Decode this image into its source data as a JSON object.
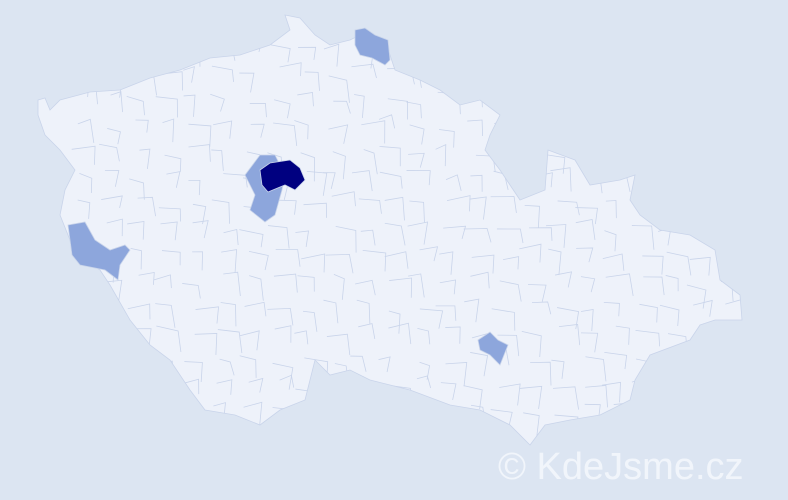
{
  "map": {
    "colors": {
      "background": "#dce5f2",
      "district_default": "#eef2fa",
      "district_border": "#c9d4ea",
      "level_low": "#8da6dc",
      "level_high": "#000080"
    },
    "highlighted_districts": [
      {
        "level": "low"
      },
      {
        "level": "low"
      },
      {
        "level": "high"
      },
      {
        "level": "low"
      },
      {
        "level": "low"
      }
    ]
  },
  "watermark": "© KdeJsme.cz"
}
